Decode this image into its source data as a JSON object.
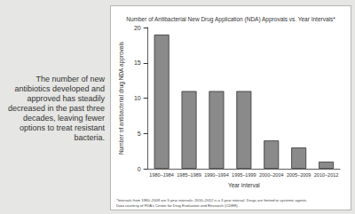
{
  "chart_data": {
    "type": "bar",
    "title": "Number of Antibacterial New Drug Application (NDA) Approvals vs. Year Intervals*",
    "x_label": "Year interval",
    "y_label": "Number of antibacterial drug NDA approvals",
    "categories": [
      "1980–1984",
      "1985–1989",
      "1990–1994",
      "1995–1999",
      "2000–2004",
      "2005–2009",
      "2010–2012"
    ],
    "values": [
      19,
      11,
      11,
      11,
      4,
      3,
      1
    ],
    "color": "#8a8a8a",
    "ylim": [
      0,
      20
    ],
    "yticks": [
      0,
      5,
      10,
      15,
      20
    ],
    "grid": false,
    "annotations": [
      "The number of new antibiotics developed and approved has steadily decreased in the past three decades, leaving fewer options to treat resistant bacteria.",
      "*Intervals from 1980–2009 are 5 year intervals; 2010–2012 is a 3 year interval. Drugs are limited to systemic agents.",
      "Data courtesy of FDA's Center for Drug Evaluation and Research (CDER)."
    ]
  }
}
